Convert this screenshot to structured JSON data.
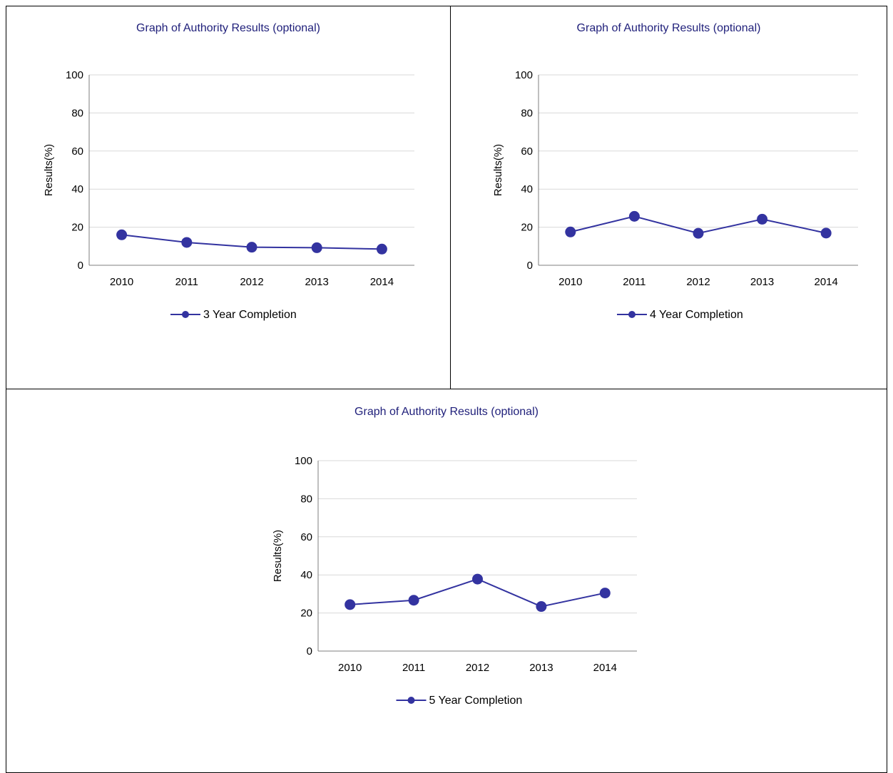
{
  "chart_data": [
    {
      "type": "line",
      "title": "Graph of Authority Results (optional)",
      "ylabel": "Results(%)",
      "xlabel": "",
      "categories": [
        "2010",
        "2011",
        "2012",
        "2013",
        "2014"
      ],
      "series": [
        {
          "name": "3 Year Completion",
          "values": [
            16,
            12,
            9.5,
            9.2,
            8.5
          ]
        }
      ],
      "ylim": [
        0,
        100
      ],
      "yticks": [
        "0",
        "20",
        "40",
        "60",
        "80",
        "100"
      ],
      "grid": true,
      "legend": "bottom",
      "color": "#3333a0"
    },
    {
      "type": "line",
      "title": "Graph of Authority Results (optional)",
      "ylabel": "Results(%)",
      "xlabel": "",
      "categories": [
        "2010",
        "2011",
        "2012",
        "2013",
        "2014"
      ],
      "series": [
        {
          "name": "4 Year Completion",
          "values": [
            17.5,
            25.7,
            16.8,
            24.2,
            16.9
          ]
        }
      ],
      "ylim": [
        0,
        100
      ],
      "yticks": [
        "0",
        "20",
        "40",
        "60",
        "80",
        "100"
      ],
      "grid": true,
      "legend": "bottom",
      "color": "#3333a0"
    },
    {
      "type": "line",
      "title": "Graph of Authority Results (optional)",
      "ylabel": "Results(%)",
      "xlabel": "",
      "categories": [
        "2010",
        "2011",
        "2012",
        "2013",
        "2014"
      ],
      "series": [
        {
          "name": "5 Year Completion",
          "values": [
            24.4,
            26.7,
            37.8,
            23.4,
            30.5
          ]
        }
      ],
      "ylim": [
        0,
        100
      ],
      "yticks": [
        "0",
        "20",
        "40",
        "60",
        "80",
        "100"
      ],
      "grid": true,
      "legend": "bottom",
      "color": "#3333a0"
    }
  ]
}
